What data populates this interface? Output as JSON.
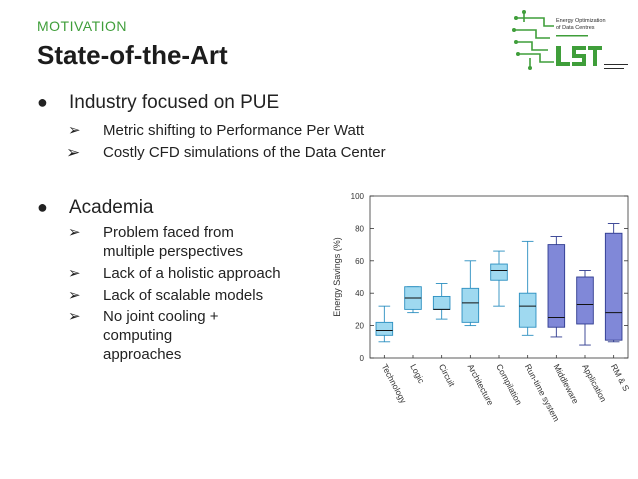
{
  "header": {
    "kicker": "MOTIVATION",
    "title": "State-of-the-Art"
  },
  "logo": {
    "icon": "circuit-lsi-logo",
    "text_line1": "Energy Optimization",
    "text_line2": "of Data Centres",
    "brand": "LSI",
    "colors": {
      "green": "#3f9e3a",
      "dark": "#2b2b2b"
    }
  },
  "bullets": [
    {
      "text": "Industry focused on PUE",
      "subs": [
        "Metric shifting to Performance Per Watt",
        "Costly CFD simulations of the Data Center"
      ]
    },
    {
      "text": "Academia",
      "subs": [
        "Problem faced from multiple perspectives",
        "Lack of a holistic approach",
        "Lack of scalable models",
        "No joint cooling + computing approaches"
      ]
    }
  ],
  "glyphs": {
    "bullet": "●",
    "arrow": "➢"
  },
  "chart_data": {
    "type": "box",
    "ylabel": "Energy Savings (%)",
    "ylim": [
      0,
      100
    ],
    "yticks": [
      0,
      20,
      40,
      60,
      80,
      100
    ],
    "categories": [
      "Technology",
      "Logic",
      "Circuit",
      "Architecture",
      "Compilation",
      "Run-time system",
      "Middleware",
      "Application",
      "RM & S"
    ],
    "boxes": [
      {
        "whisker_low": 10,
        "q1": 14,
        "median": 17,
        "q3": 22,
        "whisker_high": 32,
        "color": "#9fd9f0"
      },
      {
        "whisker_low": 28,
        "q1": 30,
        "median": 37,
        "q3": 44,
        "whisker_high": 44,
        "color": "#9fd9f0"
      },
      {
        "whisker_low": 24,
        "q1": 30,
        "median": 30,
        "q3": 38,
        "whisker_high": 46,
        "color": "#9fd9f0"
      },
      {
        "whisker_low": 20,
        "q1": 22,
        "median": 34,
        "q3": 43,
        "whisker_high": 60,
        "color": "#9fd9f0"
      },
      {
        "whisker_low": 32,
        "q1": 48,
        "median": 54,
        "q3": 58,
        "whisker_high": 66,
        "color": "#9fd9f0"
      },
      {
        "whisker_low": 14,
        "q1": 19,
        "median": 32,
        "q3": 40,
        "whisker_high": 72,
        "color": "#9fd9f0"
      },
      {
        "whisker_low": 13,
        "q1": 19,
        "median": 25,
        "q3": 70,
        "whisker_high": 75,
        "color": "#8088d8"
      },
      {
        "whisker_low": 8,
        "q1": 21,
        "median": 33,
        "q3": 50,
        "whisker_high": 54,
        "color": "#8088d8"
      },
      {
        "whisker_low": 10,
        "q1": 11,
        "median": 28,
        "q3": 77,
        "whisker_high": 83,
        "color": "#8088d8"
      }
    ],
    "grid": false,
    "legend": "none"
  }
}
